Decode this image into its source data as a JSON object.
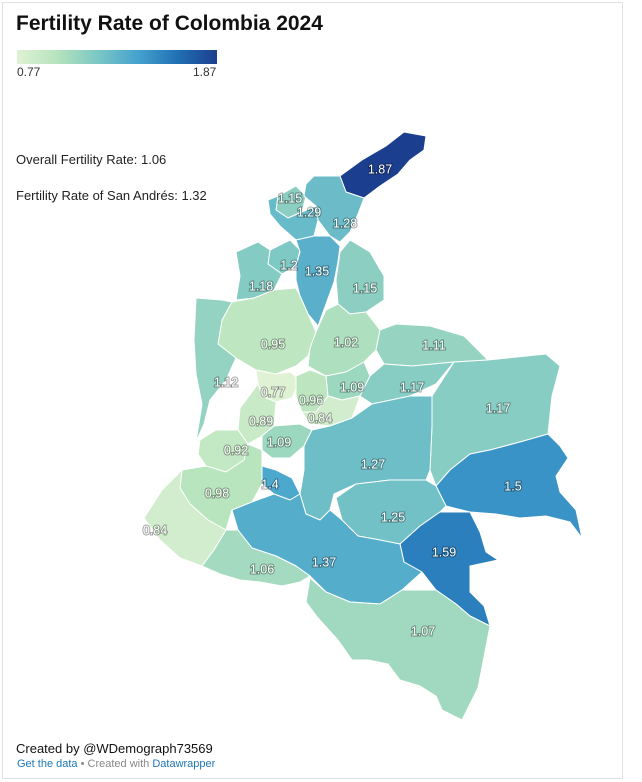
{
  "title": "Fertility Rate of Colombia 2024",
  "legend": {
    "min_label": "0.77",
    "max_label": "1.87",
    "min": 0.77,
    "max": 1.87,
    "color_low": "#dff2d4",
    "color_high": "#1c3e8f"
  },
  "notes": {
    "overall": "Overall Fertility Rate: 1.06",
    "san_andres": "Fertility Rate of San Andrés: 1.32"
  },
  "regions": [
    {
      "value": 1.87,
      "label": "1.87"
    },
    {
      "value": 1.15,
      "label": "1.15"
    },
    {
      "value": 1.29,
      "label": "1.29"
    },
    {
      "value": 1.28,
      "label": "1.28"
    },
    {
      "value": 1.2,
      "label": "1.2"
    },
    {
      "value": 1.35,
      "label": "1.35"
    },
    {
      "value": 1.18,
      "label": "1.18"
    },
    {
      "value": 1.15,
      "label": "1.15"
    },
    {
      "value": 0.95,
      "label": "0.95"
    },
    {
      "value": 1.02,
      "label": "1.02"
    },
    {
      "value": 1.11,
      "label": "1.11"
    },
    {
      "value": 1.12,
      "label": "1.12"
    },
    {
      "value": 0.77,
      "label": "0.77"
    },
    {
      "value": 0.96,
      "label": "0.96"
    },
    {
      "value": 1.09,
      "label": "1.09"
    },
    {
      "value": 1.17,
      "label": "1.17"
    },
    {
      "value": 1.17,
      "label": "1.17"
    },
    {
      "value": 0.89,
      "label": "0.89"
    },
    {
      "value": 0.84,
      "label": "0.84"
    },
    {
      "value": 0.92,
      "label": "0.92"
    },
    {
      "value": 1.09,
      "label": "1.09"
    },
    {
      "value": 1.27,
      "label": "1.27"
    },
    {
      "value": 1.4,
      "label": "1.4"
    },
    {
      "value": 0.98,
      "label": "0.98"
    },
    {
      "value": 1.5,
      "label": "1.5"
    },
    {
      "value": 0.84,
      "label": "0.84"
    },
    {
      "value": 1.25,
      "label": "1.25"
    },
    {
      "value": 1.59,
      "label": "1.59"
    },
    {
      "value": 1.37,
      "label": "1.37"
    },
    {
      "value": 1.06,
      "label": "1.06"
    },
    {
      "value": 1.07,
      "label": "1.07"
    }
  ],
  "credit": "Created by @WDemograph73569",
  "footer": {
    "get_data": "Get the data",
    "separator": " • Created with ",
    "tool": "Datawrapper"
  }
}
